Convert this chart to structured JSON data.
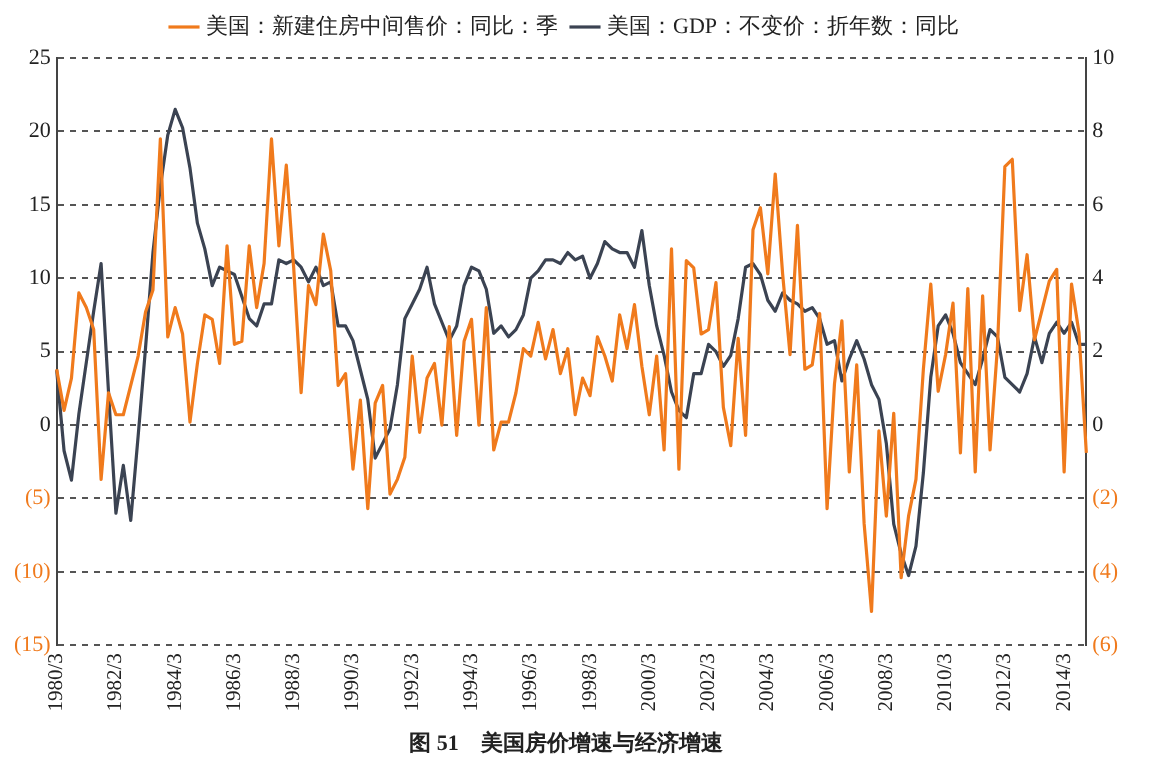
{
  "chart_data": {
    "type": "line",
    "title": "图 51　美国房价增速与经济增速",
    "categories": [
      "1980/3",
      null,
      null,
      null,
      null,
      null,
      null,
      null,
      "1982/3",
      null,
      null,
      null,
      null,
      null,
      null,
      null,
      "1984/3",
      null,
      null,
      null,
      null,
      null,
      null,
      null,
      "1986/3",
      null,
      null,
      null,
      null,
      null,
      null,
      null,
      "1988/3",
      null,
      null,
      null,
      null,
      null,
      null,
      null,
      "1990/3",
      null,
      null,
      null,
      null,
      null,
      null,
      null,
      "1992/3",
      null,
      null,
      null,
      null,
      null,
      null,
      null,
      "1994/3",
      null,
      null,
      null,
      null,
      null,
      null,
      null,
      "1996/3",
      null,
      null,
      null,
      null,
      null,
      null,
      null,
      "1998/3",
      null,
      null,
      null,
      null,
      null,
      null,
      null,
      "2000/3",
      null,
      null,
      null,
      null,
      null,
      null,
      null,
      "2002/3",
      null,
      null,
      null,
      null,
      null,
      null,
      null,
      "2004/3",
      null,
      null,
      null,
      null,
      null,
      null,
      null,
      "2006/3",
      null,
      null,
      null,
      null,
      null,
      null,
      null,
      "2008/3",
      null,
      null,
      null,
      null,
      null,
      null,
      null,
      "2010/3",
      null,
      null,
      null,
      null,
      null,
      null,
      null,
      "2012/3",
      null,
      null,
      null,
      null,
      null,
      null,
      null,
      "2014/3",
      null,
      null,
      null
    ],
    "series": [
      {
        "name": "美国：新建住房中间售价：同比：季",
        "color": "#f07a1c",
        "values": [
          3.8,
          1,
          3.2,
          9,
          8,
          6.5,
          -3.7,
          2.2,
          0.7,
          0.7,
          2.7,
          4.7,
          7.7,
          9.2,
          19.5,
          6,
          8,
          6.2,
          0.2,
          4.2,
          7.5,
          7.2,
          4.2,
          12.2,
          5.5,
          5.7,
          12.2,
          8,
          11,
          19.5,
          12.2,
          17.7,
          10.7,
          2.2,
          9.5,
          8.2,
          13,
          10.5,
          2.7,
          3.5,
          -3,
          1.7,
          -5.7,
          1.5,
          2.7,
          -4.7,
          -3.7,
          -2.2,
          4.7,
          -0.5,
          3.2,
          4.2,
          0,
          6.7,
          -0.7,
          5.7,
          7.2,
          0,
          8,
          -1.7,
          0.2,
          0.2,
          2.2,
          5.2,
          4.7,
          7,
          4.5,
          6.5,
          3.5,
          5.2,
          0.7,
          3.2,
          2,
          6,
          4.7,
          3,
          7.5,
          5.2,
          8.2,
          4,
          0.7,
          4.7,
          -1.7,
          12,
          -3,
          11.2,
          10.7,
          6.2,
          6.5,
          9.7,
          1.2,
          -1.4,
          5.9,
          -0.7,
          13.3,
          14.8,
          10.3,
          17.1,
          10.3,
          4.8,
          13.6,
          3.8,
          4.1,
          7.6,
          -5.7,
          2.8,
          7.1,
          -3.2,
          4.1,
          -6.7,
          -12.7,
          -0.4,
          -6.2,
          0.8,
          -10.4,
          -6.2,
          -3.7,
          3.8,
          9.6,
          2.3,
          4.8,
          8.3,
          -1.9,
          9.3,
          -3.2,
          8.8,
          -1.7,
          5.3,
          17.6,
          18.1,
          7.8,
          11.6,
          5.8,
          7.8,
          9.8,
          10.6,
          -3.2,
          9.6,
          6.3,
          -1.9
        ]
      },
      {
        "name": "美国：GDP：不变价：折年数：同比",
        "color": "#3b4352",
        "axis": "y2",
        "values": [
          1.5,
          -0.7,
          -1.5,
          0.3,
          1.7,
          3.1,
          4.4,
          0.9,
          -2.4,
          -1.1,
          -2.6,
          -0.3,
          2.1,
          4.7,
          6.5,
          7.9,
          8.6,
          8.1,
          7,
          5.5,
          4.8,
          3.8,
          4.3,
          4.2,
          4.1,
          3.5,
          2.9,
          2.7,
          3.3,
          3.3,
          4.5,
          4.4,
          4.5,
          4.3,
          3.9,
          4.3,
          3.8,
          3.9,
          2.7,
          2.7,
          2.3,
          1.5,
          0.7,
          -0.9,
          -0.5,
          -0.1,
          1.1,
          2.9,
          3.3,
          3.7,
          4.3,
          3.3,
          2.8,
          2.3,
          2.7,
          3.8,
          4.3,
          4.2,
          3.7,
          2.5,
          2.7,
          2.4,
          2.6,
          3,
          4,
          4.2,
          4.5,
          4.5,
          4.4,
          4.7,
          4.5,
          4.6,
          4,
          4.4,
          5,
          4.8,
          4.7,
          4.7,
          4.3,
          5.3,
          3.8,
          2.7,
          1.9,
          0.9,
          0.4,
          0.2,
          1.4,
          1.4,
          2.2,
          2,
          1.6,
          1.9,
          2.9,
          4.3,
          4.4,
          4.1,
          3.4,
          3.1,
          3.6,
          3.4,
          3.3,
          3.1,
          3.2,
          2.9,
          2.2,
          2.3,
          1.2,
          1.8,
          2.3,
          1.8,
          1.1,
          0.7,
          -0.5,
          -2.7,
          -3.5,
          -4.1,
          -3.3,
          -1.3,
          1.3,
          2.7,
          3,
          2.5,
          1.7,
          1.4,
          1.1,
          1.8,
          2.6,
          2.4,
          1.3,
          1.1,
          0.9,
          1.4,
          2.4,
          1.7,
          2.5,
          2.8,
          2.5,
          2.8,
          2.2,
          2.2
        ]
      }
    ],
    "ylim": [
      -15,
      25
    ],
    "yticks": [
      {
        "value": -15,
        "label": "(15)"
      },
      {
        "value": -10,
        "label": "(10)"
      },
      {
        "value": -5,
        "label": "(5)"
      },
      0,
      5,
      10,
      15,
      20,
      25
    ],
    "y2lim": [
      -6,
      10
    ],
    "y2ticks": [
      {
        "value": -6,
        "label": "(6)"
      },
      {
        "value": -4,
        "label": "(4)"
      },
      {
        "value": -2,
        "label": "(2)"
      },
      0,
      2,
      4,
      6,
      8,
      10
    ],
    "grid": "y",
    "legend": "top",
    "marker": "none",
    "line_style": "solid"
  }
}
